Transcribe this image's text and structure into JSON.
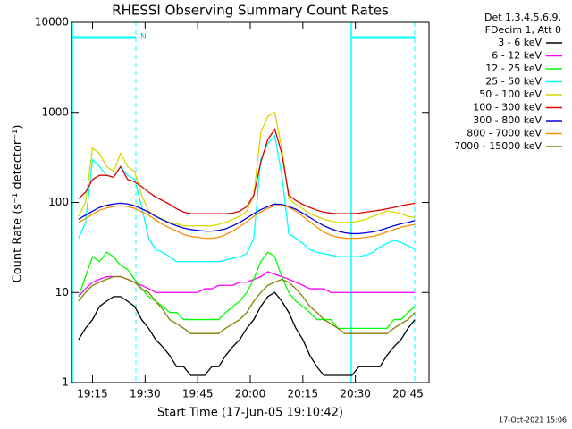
{
  "chart_data": {
    "type": "line",
    "title": "RHESSI Observing Summary Count Rates",
    "x_label": "Start Time (17-Jun-05 19:10:42)",
    "y_label": "Count Rate (s⁻¹ detector⁻¹)",
    "legend_title": [
      "Det 1,3,4,5,6,9,",
      "FDecim 1, Att 0"
    ],
    "annotations": [
      "N"
    ],
    "footer": "17-Oct-2021 15:06",
    "log_y": true,
    "legend_position": "right",
    "xlim": [
      "19:09",
      "20:51"
    ],
    "xticks": [
      "19:15",
      "19:30",
      "19:45",
      "20:00",
      "20:15",
      "20:30",
      "20:45"
    ],
    "ylim": [
      1,
      10000
    ],
    "yticks": [
      1,
      10,
      100,
      1000,
      10000
    ],
    "x": [
      "19:11",
      "19:13",
      "19:15",
      "19:17",
      "19:19",
      "19:21",
      "19:23",
      "19:25",
      "19:27",
      "19:29",
      "19:31",
      "19:33",
      "19:35",
      "19:37",
      "19:39",
      "19:41",
      "19:43",
      "19:45",
      "19:47",
      "19:49",
      "19:51",
      "19:53",
      "19:55",
      "19:57",
      "19:59",
      "20:01",
      "20:03",
      "20:05",
      "20:07",
      "20:09",
      "20:11",
      "20:13",
      "20:15",
      "20:17",
      "20:19",
      "20:21",
      "20:23",
      "20:25",
      "20:27",
      "20:29",
      "20:31",
      "20:33",
      "20:35",
      "20:37",
      "20:39",
      "20:41",
      "20:43",
      "20:45",
      "20:47"
    ],
    "series": [
      {
        "name": "3 - 6 keV",
        "color": "#000000",
        "values": [
          3,
          4,
          5,
          7,
          8,
          9,
          9,
          8,
          7,
          5,
          4,
          3,
          2.5,
          2,
          1.5,
          1.5,
          1.2,
          1.2,
          1.2,
          1.5,
          1.5,
          2,
          2.5,
          3,
          4,
          5,
          7,
          9,
          10,
          8,
          6,
          4,
          3,
          2,
          1.5,
          1.2,
          1.2,
          1.2,
          1.2,
          1.2,
          1.5,
          1.5,
          1.5,
          1.5,
          2,
          2.5,
          3,
          4,
          5
        ]
      },
      {
        "name": "6 - 12 keV",
        "color": "#ff00ff",
        "values": [
          9,
          11,
          13,
          14,
          15,
          15,
          15,
          14,
          13,
          12,
          11,
          10,
          10,
          10,
          10,
          10,
          10,
          10,
          11,
          11,
          12,
          12,
          12,
          13,
          13,
          14,
          15,
          17,
          16,
          15,
          14,
          13,
          12,
          11,
          11,
          11,
          10,
          10,
          10,
          10,
          10,
          10,
          10,
          10,
          10,
          10,
          10,
          10,
          10
        ]
      },
      {
        "name": "12 - 25 keV",
        "color": "#00ff00",
        "values": [
          9,
          15,
          25,
          22,
          28,
          25,
          20,
          18,
          14,
          11,
          9,
          8,
          7,
          6,
          6,
          5,
          5,
          5,
          5,
          5,
          5,
          6,
          7,
          8,
          10,
          14,
          22,
          28,
          25,
          15,
          10,
          8,
          7,
          6,
          5,
          5,
          5,
          4,
          4,
          4,
          4,
          4,
          4,
          4,
          4,
          5,
          5,
          6,
          7
        ]
      },
      {
        "name": "25 - 50 keV",
        "color": "#00ffff",
        "values": [
          40,
          60,
          300,
          250,
          200,
          190,
          250,
          200,
          180,
          90,
          40,
          30,
          28,
          25,
          22,
          22,
          22,
          22,
          22,
          22,
          22,
          23,
          24,
          25,
          27,
          40,
          300,
          450,
          550,
          200,
          45,
          40,
          35,
          30,
          28,
          27,
          26,
          25,
          25,
          25,
          25,
          26,
          28,
          32,
          35,
          38,
          36,
          33,
          30
        ]
      },
      {
        "name": "50 - 100 keV",
        "color": "#d8d800",
        "values": [
          70,
          100,
          400,
          350,
          250,
          220,
          350,
          250,
          220,
          120,
          80,
          70,
          65,
          60,
          58,
          55,
          55,
          55,
          55,
          55,
          57,
          60,
          65,
          70,
          80,
          120,
          600,
          900,
          1000,
          400,
          110,
          95,
          85,
          75,
          70,
          65,
          62,
          60,
          60,
          60,
          62,
          65,
          70,
          75,
          80,
          78,
          75,
          70,
          68
        ]
      },
      {
        "name": "100 - 300 keV",
        "color": "#e00000",
        "values": [
          110,
          130,
          180,
          200,
          200,
          190,
          250,
          180,
          170,
          150,
          130,
          115,
          105,
          95,
          85,
          78,
          75,
          75,
          75,
          75,
          75,
          75,
          76,
          80,
          90,
          120,
          280,
          500,
          650,
          350,
          120,
          105,
          95,
          88,
          82,
          78,
          76,
          75,
          75,
          75,
          76,
          78,
          80,
          82,
          85,
          88,
          92,
          95,
          98
        ]
      },
      {
        "name": "300 - 800 keV",
        "color": "#0000e0",
        "values": [
          65,
          72,
          80,
          88,
          93,
          96,
          98,
          96,
          92,
          85,
          78,
          70,
          64,
          59,
          55,
          52,
          50,
          49,
          48,
          48,
          49,
          51,
          55,
          60,
          67,
          75,
          83,
          90,
          96,
          95,
          90,
          84,
          76,
          68,
          61,
          55,
          51,
          48,
          46,
          45,
          45,
          46,
          47,
          49,
          52,
          55,
          58,
          60,
          63
        ]
      },
      {
        "name": "800 - 7000 keV",
        "color": "#ff8c00",
        "values": [
          60,
          66,
          74,
          82,
          87,
          90,
          92,
          90,
          86,
          79,
          72,
          64,
          57,
          52,
          48,
          44,
          42,
          41,
          40,
          40,
          41,
          44,
          48,
          54,
          61,
          70,
          78,
          86,
          92,
          93,
          88,
          80,
          70,
          61,
          53,
          47,
          43,
          41,
          40,
          40,
          40,
          41,
          42,
          44,
          47,
          50,
          53,
          55,
          57
        ]
      },
      {
        "name": "7000 - 15000 keV",
        "color": "#808000",
        "values": [
          8,
          10,
          12,
          13,
          14,
          15,
          15,
          14,
          13,
          11,
          10,
          8,
          6.5,
          5,
          4.5,
          4,
          3.5,
          3.5,
          3.5,
          3.5,
          3.5,
          4,
          4.5,
          5,
          6,
          8,
          10,
          12,
          13,
          14,
          13,
          11,
          9,
          7,
          6,
          5,
          4.5,
          4,
          3.5,
          3.5,
          3.5,
          3.5,
          3.5,
          3.5,
          3.5,
          4,
          4.5,
          5,
          6
        ]
      }
    ]
  }
}
